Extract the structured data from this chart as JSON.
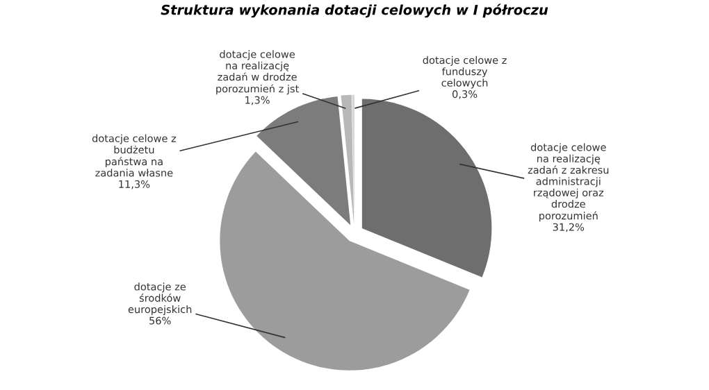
{
  "chart_data": {
    "type": "pie",
    "title": "Struktura wykonania dotacji celowych w I półroczu",
    "categories": [
      "dotacje celowe\nna realizację\nzadań z zakresu\nadministracji\nrządowej oraz\ndrodze\nporozumień",
      "dotacje ze\nśrodków\neuropejskich",
      "dotacje celowe z\nbudżetu\npaństwa na\nzadania własne",
      "dotacje celowe\nna realizację\nzadań w drodze\nporozumień z jst",
      "dotacje celowe z\nfunduszy\ncelowych"
    ],
    "values": [
      31.2,
      56,
      11.3,
      1.3,
      0.3
    ],
    "value_labels": [
      "31,2%",
      "56%",
      "11,3%",
      "1,3%",
      "0,3%"
    ],
    "colors": [
      "#6e6e6e",
      "#9c9c9c",
      "#7c7c7c",
      "#b8b8b8",
      "#d4d4d4"
    ],
    "legend": false
  }
}
